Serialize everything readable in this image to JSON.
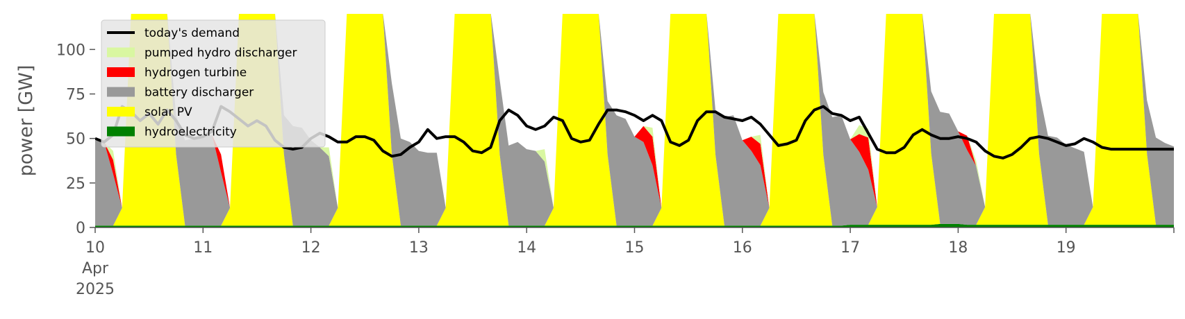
{
  "chart_data": {
    "type": "area",
    "title": "",
    "xlabel": "",
    "ylabel": "power [GW]",
    "x_range": [
      "2025-04-10T00:00",
      "2025-04-20T00:00"
    ],
    "ylim": [
      0,
      120
    ],
    "yticks": [
      0,
      25,
      50,
      75,
      100
    ],
    "grid": false,
    "legend_placement": "top-left",
    "x_tick_labels": [
      {
        "day": "10",
        "month": "Apr",
        "year": "2025"
      },
      {
        "day": "11"
      },
      {
        "day": "12"
      },
      {
        "day": "13"
      },
      {
        "day": "14"
      },
      {
        "day": "15"
      },
      {
        "day": "16"
      },
      {
        "day": "17"
      },
      {
        "day": "18"
      },
      {
        "day": "19"
      }
    ],
    "x": [
      "2025-04-10T00:00",
      "2025-04-10T02:00",
      "2025-04-10T04:00",
      "2025-04-10T06:00",
      "2025-04-10T08:00",
      "2025-04-10T10:00",
      "2025-04-10T12:00",
      "2025-04-10T14:00",
      "2025-04-10T16:00",
      "2025-04-10T18:00",
      "2025-04-10T20:00",
      "2025-04-10T22:00",
      "2025-04-11T00:00",
      "2025-04-11T02:00",
      "2025-04-11T04:00",
      "2025-04-11T06:00",
      "2025-04-11T08:00",
      "2025-04-11T10:00",
      "2025-04-11T12:00",
      "2025-04-11T14:00",
      "2025-04-11T16:00",
      "2025-04-11T18:00",
      "2025-04-11T20:00",
      "2025-04-11T22:00",
      "2025-04-12T00:00",
      "2025-04-12T02:00",
      "2025-04-12T04:00",
      "2025-04-12T06:00",
      "2025-04-12T08:00",
      "2025-04-12T10:00",
      "2025-04-12T12:00",
      "2025-04-12T14:00",
      "2025-04-12T16:00",
      "2025-04-12T18:00",
      "2025-04-12T20:00",
      "2025-04-12T22:00",
      "2025-04-13T00:00",
      "2025-04-13T02:00",
      "2025-04-13T04:00",
      "2025-04-13T06:00",
      "2025-04-13T08:00",
      "2025-04-13T10:00",
      "2025-04-13T12:00",
      "2025-04-13T14:00",
      "2025-04-13T16:00",
      "2025-04-13T18:00",
      "2025-04-13T20:00",
      "2025-04-13T22:00",
      "2025-04-14T00:00",
      "2025-04-14T02:00",
      "2025-04-14T04:00",
      "2025-04-14T06:00",
      "2025-04-14T08:00",
      "2025-04-14T10:00",
      "2025-04-14T12:00",
      "2025-04-14T14:00",
      "2025-04-14T16:00",
      "2025-04-14T18:00",
      "2025-04-14T20:00",
      "2025-04-14T22:00",
      "2025-04-15T00:00",
      "2025-04-15T02:00",
      "2025-04-15T04:00",
      "2025-04-15T06:00",
      "2025-04-15T08:00",
      "2025-04-15T10:00",
      "2025-04-15T12:00",
      "2025-04-15T14:00",
      "2025-04-15T16:00",
      "2025-04-15T18:00",
      "2025-04-15T20:00",
      "2025-04-15T22:00",
      "2025-04-16T00:00",
      "2025-04-16T02:00",
      "2025-04-16T04:00",
      "2025-04-16T06:00",
      "2025-04-16T08:00",
      "2025-04-16T10:00",
      "2025-04-16T12:00",
      "2025-04-16T14:00",
      "2025-04-16T16:00",
      "2025-04-16T18:00",
      "2025-04-16T20:00",
      "2025-04-16T22:00",
      "2025-04-17T00:00",
      "2025-04-17T02:00",
      "2025-04-17T04:00",
      "2025-04-17T06:00",
      "2025-04-17T08:00",
      "2025-04-17T10:00",
      "2025-04-17T12:00",
      "2025-04-17T14:00",
      "2025-04-17T16:00",
      "2025-04-17T18:00",
      "2025-04-17T20:00",
      "2025-04-17T22:00",
      "2025-04-18T00:00",
      "2025-04-18T02:00",
      "2025-04-18T04:00",
      "2025-04-18T06:00",
      "2025-04-18T08:00",
      "2025-04-18T10:00",
      "2025-04-18T12:00",
      "2025-04-18T14:00",
      "2025-04-18T16:00",
      "2025-04-18T18:00",
      "2025-04-18T20:00",
      "2025-04-18T22:00",
      "2025-04-19T00:00",
      "2025-04-19T02:00",
      "2025-04-19T04:00",
      "2025-04-19T06:00",
      "2025-04-19T08:00",
      "2025-04-19T10:00",
      "2025-04-19T12:00",
      "2025-04-19T14:00",
      "2025-04-19T16:00",
      "2025-04-19T18:00",
      "2025-04-19T20:00",
      "2025-04-19T22:00",
      "2025-04-20T00:00"
    ],
    "series": [
      {
        "name": "hydroelectricity",
        "color": "#008000",
        "values": [
          1,
          1,
          1,
          1,
          1,
          1,
          1,
          1,
          1,
          1,
          1,
          1,
          1,
          1,
          1,
          1,
          1,
          1,
          1,
          1,
          1,
          1,
          1,
          1,
          1,
          1,
          1,
          1,
          1,
          1,
          1,
          1,
          1,
          1,
          1,
          1,
          1,
          1,
          1,
          1,
          1,
          1,
          1,
          1,
          1,
          1,
          1,
          1,
          1,
          1,
          1,
          1,
          1,
          1,
          1,
          1,
          1,
          1,
          1,
          1,
          1,
          1,
          1,
          1,
          1,
          1,
          1,
          1,
          1,
          1,
          1,
          1,
          1,
          1,
          1,
          1,
          1,
          1,
          1,
          1,
          1,
          1,
          1,
          1,
          1.5,
          1.5,
          1.5,
          1.5,
          1.5,
          1.5,
          1.5,
          1.5,
          1.5,
          1.5,
          2,
          2,
          2,
          1.5,
          1.5,
          1.5,
          1.5,
          1.5,
          1.5,
          1.5,
          1.5,
          1.5,
          1.5,
          1.5,
          1.5,
          1.5,
          1.5,
          1.5,
          1.5,
          1.5,
          1.5,
          1.5,
          1.5,
          1.5,
          1.5,
          1.5,
          1.5
        ]
      },
      {
        "name": "solar PV",
        "color": "#ffff00",
        "values": [
          0,
          0,
          0,
          10,
          120,
          120,
          120,
          120,
          120,
          40,
          0,
          0,
          0,
          0,
          0,
          10,
          120,
          120,
          120,
          120,
          120,
          40,
          0,
          0,
          0,
          0,
          0,
          10,
          120,
          120,
          120,
          120,
          120,
          40,
          0,
          0,
          0,
          0,
          0,
          10,
          120,
          120,
          120,
          120,
          120,
          40,
          0,
          0,
          0,
          0,
          0,
          10,
          120,
          120,
          120,
          120,
          120,
          40,
          0,
          0,
          0,
          0,
          0,
          10,
          120,
          120,
          120,
          120,
          120,
          40,
          0,
          0,
          0,
          0,
          0,
          10,
          120,
          120,
          120,
          120,
          120,
          40,
          0,
          0,
          0,
          0,
          0,
          10,
          120,
          120,
          120,
          120,
          120,
          40,
          0,
          0,
          0,
          0,
          0,
          10,
          120,
          120,
          120,
          120,
          120,
          40,
          0,
          0,
          0,
          0,
          0,
          10,
          120,
          120,
          120,
          120,
          120,
          40,
          0,
          0,
          0
        ]
      },
      {
        "name": "battery discharger",
        "color": "#999999",
        "values": [
          48,
          47,
          29,
          0,
          0,
          0,
          0,
          0,
          0,
          22,
          48,
          49,
          50,
          51,
          30,
          0,
          0,
          0,
          0,
          0,
          0,
          22,
          56,
          55,
          48,
          44,
          39,
          0,
          0,
          0,
          0,
          0,
          0,
          40,
          49,
          47,
          42,
          41,
          41,
          0,
          0,
          0,
          0,
          0,
          0,
          42,
          45,
          47,
          43,
          42,
          36,
          0,
          0,
          0,
          0,
          0,
          0,
          30,
          62,
          60,
          50,
          47,
          34,
          0,
          0,
          0,
          0,
          0,
          0,
          25,
          61,
          62,
          48,
          42,
          34,
          0,
          0,
          0,
          0,
          0,
          0,
          35,
          61,
          62,
          48,
          41,
          31,
          0,
          0,
          0,
          0,
          0,
          0,
          35,
          63,
          62,
          52,
          42,
          33,
          0,
          0,
          0,
          0,
          0,
          0,
          35,
          50,
          49,
          45,
          43,
          41,
          0,
          0,
          0,
          0,
          0,
          0,
          30,
          49,
          46,
          44
        ]
      },
      {
        "name": "hydrogen turbine",
        "color": "#ff0000",
        "values": [
          0,
          0,
          8,
          0,
          0,
          0,
          0,
          0,
          0,
          0,
          0,
          0,
          0,
          0,
          10,
          0,
          0,
          0,
          0,
          0,
          0,
          0,
          0,
          0,
          0,
          0,
          0,
          0,
          0,
          0,
          0,
          0,
          0,
          0,
          0,
          0,
          0,
          0,
          0,
          0,
          0,
          0,
          0,
          0,
          0,
          0,
          0,
          0,
          0,
          0,
          0,
          0,
          0,
          0,
          0,
          0,
          0,
          0,
          0,
          0,
          0,
          9,
          16,
          0,
          0,
          0,
          0,
          0,
          0,
          0,
          0,
          0,
          0,
          8,
          12,
          0,
          0,
          0,
          0,
          0,
          0,
          0,
          0,
          0,
          0,
          10,
          18,
          0,
          0,
          0,
          0,
          0,
          0,
          0,
          0,
          0,
          0,
          8,
          0,
          0,
          0,
          0,
          0,
          0,
          0,
          0,
          0,
          0,
          0,
          0,
          0,
          0,
          0,
          0,
          0,
          0,
          0,
          0,
          0,
          0,
          0
        ]
      },
      {
        "name": "pumped hydro discharger",
        "color": "#d9f7a1",
        "values": [
          0,
          0,
          5,
          0,
          0,
          0,
          0,
          0,
          0,
          0,
          0,
          0,
          0,
          0,
          0,
          0,
          0,
          0,
          0,
          0,
          0,
          0,
          0,
          0,
          0,
          0,
          5,
          0,
          0,
          0,
          0,
          0,
          0,
          0,
          0,
          0,
          0,
          0,
          0,
          0,
          0,
          0,
          0,
          0,
          0,
          0,
          0,
          0,
          0,
          0,
          7,
          0,
          0,
          0,
          0,
          0,
          0,
          0,
          0,
          0,
          0,
          0,
          5,
          0,
          0,
          0,
          0,
          0,
          0,
          0,
          0,
          0,
          0,
          0,
          5,
          0,
          0,
          0,
          0,
          0,
          0,
          0,
          0,
          0,
          0,
          5,
          5,
          0,
          0,
          0,
          0,
          0,
          0,
          0,
          0,
          0,
          0,
          0,
          3,
          0,
          0,
          0,
          0,
          0,
          0,
          0,
          0,
          0,
          0,
          0,
          0,
          0,
          0,
          0,
          0,
          0,
          0,
          0,
          0,
          0,
          0
        ]
      },
      {
        "name": "today's demand",
        "color": "#000000",
        "line": true,
        "values": [
          50,
          48,
          52,
          68,
          65,
          60,
          64,
          58,
          66,
          60,
          52,
          50,
          51,
          54,
          68,
          65,
          61,
          57,
          60,
          57,
          49,
          45,
          44,
          45,
          50,
          53,
          51,
          48,
          48,
          51,
          51,
          49,
          43,
          40,
          41,
          45,
          48,
          55,
          50,
          51,
          51,
          48,
          43,
          42,
          45,
          60,
          66,
          63,
          57,
          55,
          57,
          62,
          60,
          50,
          48,
          49,
          58,
          66,
          66,
          65,
          63,
          60,
          63,
          60,
          48,
          46,
          49,
          60,
          65,
          65,
          62,
          61,
          60,
          62,
          58,
          52,
          46,
          47,
          49,
          60,
          66,
          68,
          64,
          63,
          60,
          62,
          53,
          44,
          42,
          42,
          45,
          52,
          55,
          52,
          50,
          50,
          51,
          50,
          48,
          43,
          40,
          39,
          41,
          45,
          50,
          51,
          50,
          48,
          46,
          47,
          50,
          48,
          45,
          44,
          44,
          44,
          44,
          44,
          44,
          44,
          44
        ]
      }
    ]
  }
}
